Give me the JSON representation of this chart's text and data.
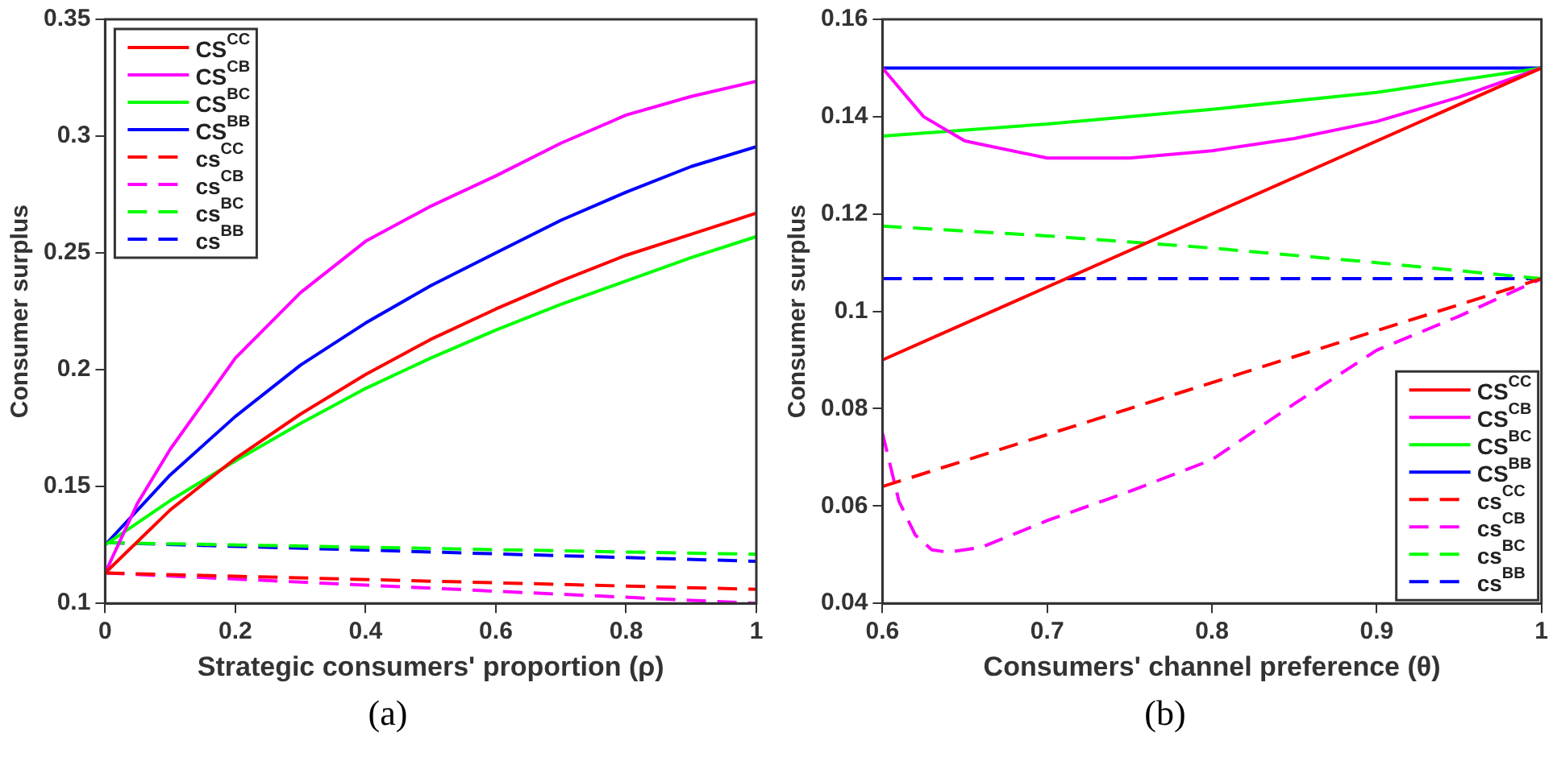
{
  "chart_data": [
    {
      "type": "line",
      "xlabel": "Strategic consumers' proportion (ρ)",
      "ylabel": "Consumer surplus",
      "annotations": [
        "(a)"
      ],
      "xlim": [
        0,
        1
      ],
      "xticks": [
        0,
        0.2,
        0.4,
        0.6,
        0.8,
        1
      ],
      "ylim": [
        0.1,
        0.35
      ],
      "yticks": [
        0.1,
        0.15,
        0.2,
        0.25,
        0.3,
        0.35
      ],
      "grid": false,
      "legend": "top left",
      "marker": "none",
      "series": [
        {
          "name": "CS$^{CC}$",
          "color": "#ff0000",
          "line_style": "solid",
          "x": [
            0,
            0.1,
            0.2,
            0.3,
            0.4,
            0.5,
            0.6,
            0.7,
            0.8,
            0.9,
            1
          ],
          "values": [
            0.113,
            0.14,
            0.162,
            0.181,
            0.198,
            0.213,
            0.226,
            0.238,
            0.249,
            0.258,
            0.267
          ]
        },
        {
          "name": "CS$^{CB}$",
          "color": "#ff00ff",
          "line_style": "solid",
          "x": [
            0,
            0.05,
            0.1,
            0.2,
            0.3,
            0.4,
            0.5,
            0.6,
            0.7,
            0.8,
            0.9,
            1
          ],
          "values": [
            0.113,
            0.143,
            0.166,
            0.205,
            0.233,
            0.255,
            0.27,
            0.283,
            0.297,
            0.309,
            0.317,
            0.3235
          ]
        },
        {
          "name": "CS$^{BC}$",
          "color": "#00ff00",
          "line_style": "solid",
          "x": [
            0,
            0.1,
            0.2,
            0.3,
            0.4,
            0.5,
            0.6,
            0.7,
            0.8,
            0.9,
            1
          ],
          "values": [
            0.125,
            0.144,
            0.161,
            0.177,
            0.192,
            0.205,
            0.217,
            0.228,
            0.238,
            0.248,
            0.257
          ]
        },
        {
          "name": "CS$^{BB}$",
          "color": "#0000ff",
          "line_style": "solid",
          "x": [
            0,
            0.1,
            0.2,
            0.3,
            0.4,
            0.5,
            0.6,
            0.7,
            0.8,
            0.9,
            1
          ],
          "values": [
            0.125,
            0.155,
            0.18,
            0.202,
            0.22,
            0.236,
            0.25,
            0.264,
            0.276,
            0.287,
            0.2955
          ]
        },
        {
          "name": "cs$^{CC}$",
          "color": "#ff0000",
          "line_style": "dashed",
          "x": [
            0,
            1
          ],
          "values": [
            0.113,
            0.106
          ]
        },
        {
          "name": "cs$^{CB}$",
          "color": "#ff00ff",
          "line_style": "dashed",
          "x": [
            0,
            1
          ],
          "values": [
            0.113,
            0.1
          ]
        },
        {
          "name": "cs$^{BC}$",
          "color": "#00ff00",
          "line_style": "dashed",
          "x": [
            0,
            1
          ],
          "values": [
            0.126,
            0.121
          ]
        },
        {
          "name": "cs$^{BB}$",
          "color": "#0000ff",
          "line_style": "dashed",
          "x": [
            0,
            1
          ],
          "values": [
            0.126,
            0.118
          ]
        }
      ]
    },
    {
      "type": "line",
      "xlabel": "Consumers' channel preference (θ)",
      "ylabel": "Consumer surplus",
      "annotations": [
        "(b)"
      ],
      "xlim": [
        0.6,
        1
      ],
      "xticks": [
        0.6,
        0.7,
        0.8,
        0.9,
        1
      ],
      "ylim": [
        0.04,
        0.16
      ],
      "yticks": [
        0.04,
        0.06,
        0.08,
        0.1,
        0.12,
        0.14,
        0.16
      ],
      "grid": false,
      "legend": "bottom right",
      "marker": "none",
      "series": [
        {
          "name": "CS$^{CC}$",
          "color": "#ff0000",
          "line_style": "solid",
          "x": [
            0.6,
            1
          ],
          "values": [
            0.09,
            0.15
          ]
        },
        {
          "name": "CS$^{CB}$",
          "color": "#ff00ff",
          "line_style": "solid",
          "x": [
            0.6,
            0.625,
            0.65,
            0.7,
            0.75,
            0.8,
            0.85,
            0.9,
            0.95,
            1
          ],
          "values": [
            0.15,
            0.14,
            0.135,
            0.1315,
            0.1315,
            0.133,
            0.1355,
            0.139,
            0.144,
            0.15
          ]
        },
        {
          "name": "CS$^{BC}$",
          "color": "#00ff00",
          "line_style": "solid",
          "x": [
            0.6,
            0.7,
            0.8,
            0.9,
            1
          ],
          "values": [
            0.136,
            0.1385,
            0.1415,
            0.145,
            0.15
          ]
        },
        {
          "name": "CS$^{BB}$",
          "color": "#0000ff",
          "line_style": "solid",
          "x": [
            0.6,
            1
          ],
          "values": [
            0.15,
            0.15
          ]
        },
        {
          "name": "cs$^{CC}$",
          "color": "#ff0000",
          "line_style": "dashed",
          "x": [
            0.6,
            1
          ],
          "values": [
            0.064,
            0.1067
          ]
        },
        {
          "name": "cs$^{CB}$",
          "color": "#ff00ff",
          "line_style": "dashed",
          "x": [
            0.6,
            0.61,
            0.62,
            0.63,
            0.64,
            0.66,
            0.7,
            0.75,
            0.8,
            0.85,
            0.9,
            0.95,
            1
          ],
          "values": [
            0.075,
            0.061,
            0.054,
            0.051,
            0.0505,
            0.0515,
            0.057,
            0.063,
            0.0695,
            0.081,
            0.092,
            0.099,
            0.1067
          ]
        },
        {
          "name": "cs$^{BC}$",
          "color": "#00ff00",
          "line_style": "dashed",
          "x": [
            0.6,
            0.7,
            0.8,
            0.9,
            1
          ],
          "values": [
            0.1175,
            0.1155,
            0.113,
            0.11,
            0.1067
          ]
        },
        {
          "name": "cs$^{BB}$",
          "color": "#0000ff",
          "line_style": "dashed",
          "x": [
            0.6,
            1
          ],
          "values": [
            0.1067,
            0.1067
          ]
        }
      ]
    }
  ]
}
